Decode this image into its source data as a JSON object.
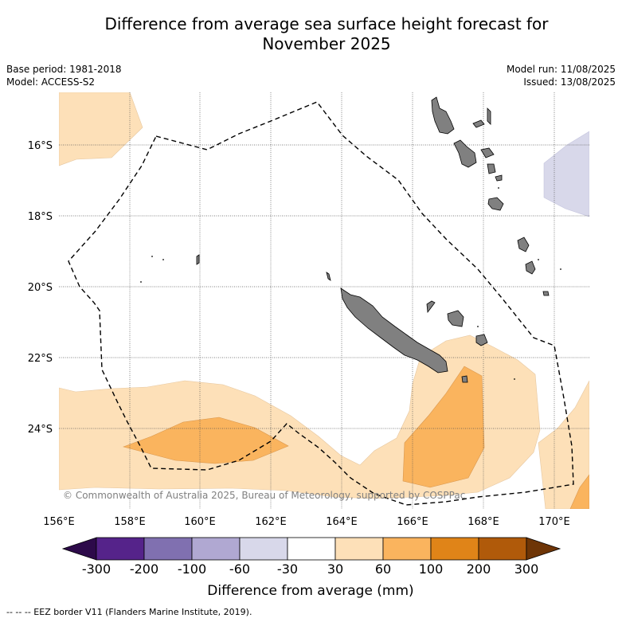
{
  "title_line1": "Difference from average sea surface height forecast for",
  "title_line2": "November 2025",
  "base_period": "Base period: 1981-2018",
  "model": "Model: ACCESS-S2",
  "model_run": "Model run: 11/08/2025",
  "issued": "Issued: 13/08/2025",
  "copyright": "© Commonwealth of Australia 2025, Bureau of Meteorology, supported by COSPPac",
  "lon_labels": [
    "156°E",
    "158°E",
    "160°E",
    "162°E",
    "164°E",
    "166°E",
    "168°E",
    "170°E"
  ],
  "lat_labels": [
    "16°S",
    "18°S",
    "20°S",
    "22°S",
    "24°S"
  ],
  "colorbar": {
    "label": "Difference from average (mm)",
    "ticks": [
      "-300",
      "-200",
      "-100",
      "-60",
      "-30",
      "30",
      "60",
      "100",
      "200",
      "300"
    ],
    "colors": {
      "under": "#2d0a4a",
      "c1": "#55238a",
      "c2": "#8070b0",
      "c3": "#b0a8d2",
      "c4": "#d8d8ea",
      "c5": "#ffffff",
      "c6": "#fde0b8",
      "c7": "#fab45e",
      "c8": "#e08418",
      "c9": "#b05a0a",
      "over": "#6e3506"
    }
  },
  "map_colors": {
    "land": "#808080",
    "positive_30_60": "#fde0b8",
    "positive_60_100": "#fab45e",
    "negative_30_60": "#d8d8ea"
  },
  "footer": "-- -- -- EEZ border V11 (Flanders Marine Institute, 2019)."
}
